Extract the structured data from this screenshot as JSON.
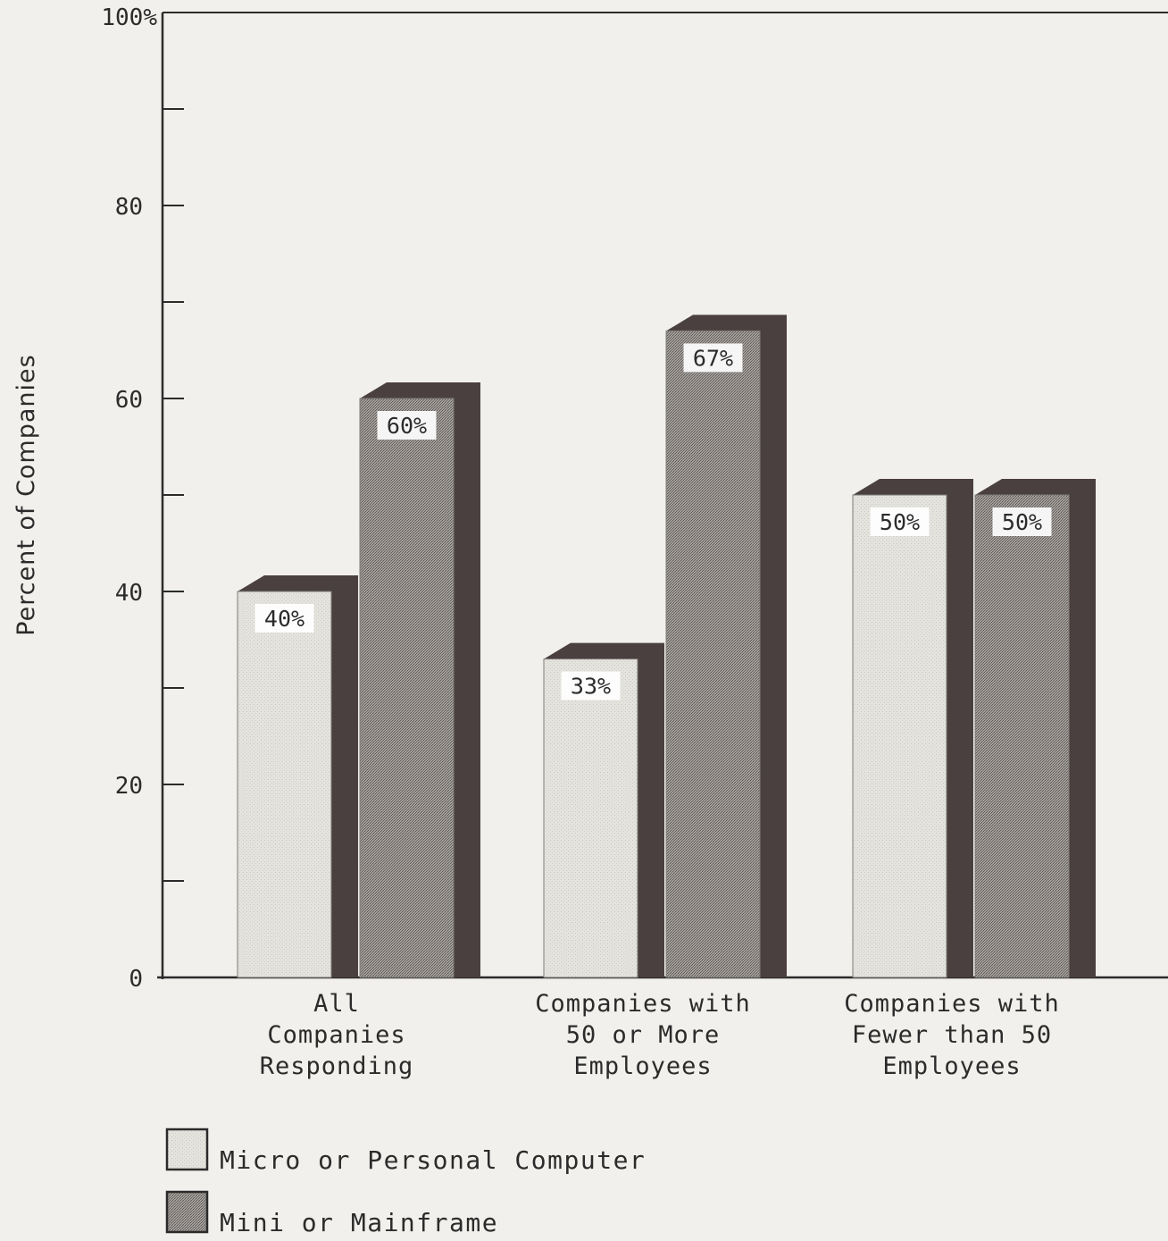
{
  "chart_data": {
    "type": "bar",
    "title": "",
    "xlabel": "",
    "ylabel": "Percent of Companies",
    "ylim": [
      0,
      100
    ],
    "yticks": [
      {
        "value": 0,
        "label": "0"
      },
      {
        "value": 10,
        "label": ""
      },
      {
        "value": 20,
        "label": "20"
      },
      {
        "value": 30,
        "label": ""
      },
      {
        "value": 40,
        "label": "40"
      },
      {
        "value": 50,
        "label": ""
      },
      {
        "value": 60,
        "label": "60"
      },
      {
        "value": 70,
        "label": ""
      },
      {
        "value": 80,
        "label": "80"
      },
      {
        "value": 90,
        "label": ""
      },
      {
        "value": 100,
        "label": "100%"
      }
    ],
    "categories": [
      [
        "All",
        "Companies",
        "Responding"
      ],
      [
        "Companies with",
        "50 or More",
        "Employees"
      ],
      [
        "Companies with",
        "Fewer than 50",
        "Employees"
      ]
    ],
    "series": [
      {
        "name": "Micro or Personal Computer",
        "values": [
          40,
          33,
          50
        ],
        "data_labels": [
          "40%",
          "33%",
          "50%"
        ]
      },
      {
        "name": "Mini or Mainframe",
        "values": [
          60,
          67,
          50
        ],
        "data_labels": [
          "60%",
          "67%",
          "50%"
        ]
      }
    ],
    "legend_position": "bottom-left",
    "grid": false,
    "colors": {
      "micro_fill": "#e3e2dc",
      "mainframe_fill": "#8e8a86",
      "shadow": "#4a4040",
      "axis": "#2b2b2b",
      "background": "#f1f0ec"
    }
  }
}
